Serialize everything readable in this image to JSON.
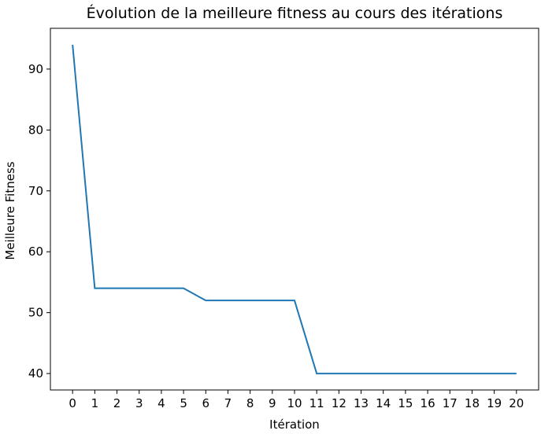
{
  "chart_data": {
    "type": "line",
    "title": "Évolution de la meilleure fitness au cours des itérations",
    "xlabel": "Itération",
    "ylabel": "Meilleure Fitness",
    "x": [
      0,
      1,
      2,
      3,
      4,
      5,
      6,
      7,
      8,
      9,
      10,
      11,
      12,
      13,
      14,
      15,
      16,
      17,
      18,
      19,
      20
    ],
    "series": [
      {
        "values": [
          94,
          54,
          54,
          54,
          54,
          54,
          52,
          52,
          52,
          52,
          52,
          40,
          40,
          40,
          40,
          40,
          40,
          40,
          40,
          40,
          40
        ],
        "color": "#1f77b4"
      }
    ],
    "xlim": [
      -1,
      21
    ],
    "ylim": [
      37.3,
      96.7
    ],
    "xticks": [
      "0",
      "1",
      "2",
      "3",
      "4",
      "5",
      "6",
      "7",
      "8",
      "9",
      "10",
      "11",
      "12",
      "13",
      "14",
      "15",
      "16",
      "17",
      "18",
      "19",
      "20"
    ],
    "yticks": [
      "40",
      "50",
      "60",
      "70",
      "80",
      "90"
    ],
    "ytick_values": [
      40,
      50,
      60,
      70,
      80,
      90
    ],
    "grid": false,
    "legend": "none"
  }
}
